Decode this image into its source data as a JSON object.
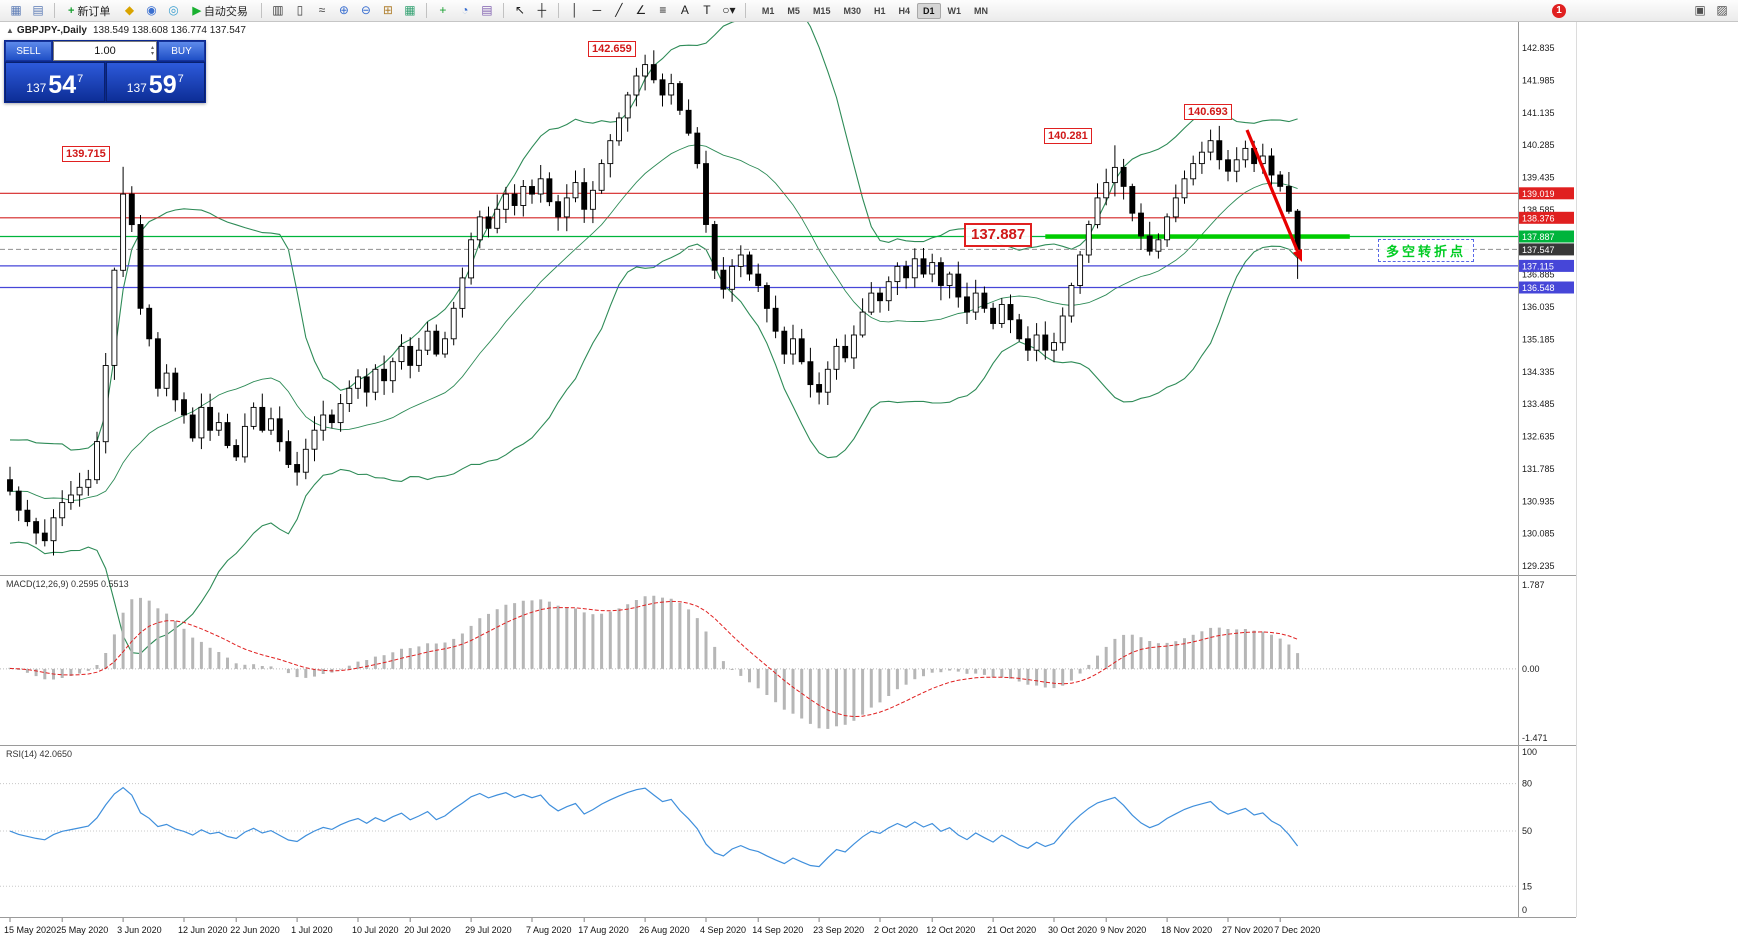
{
  "toolbar": {
    "new_order_label": "新订单",
    "autotrade_label": "自动交易",
    "timeframes": [
      "M1",
      "M5",
      "M15",
      "M30",
      "H1",
      "H4",
      "D1",
      "W1",
      "MN"
    ],
    "active_timeframe": "D1",
    "notification_count": "1",
    "items": [
      {
        "t": "icon",
        "name": "new-chart-icon",
        "g": "▦",
        "c": "#5a7ab5"
      },
      {
        "t": "icon",
        "name": "chart-profiles-icon",
        "g": "▤",
        "c": "#5a7ab5"
      },
      {
        "t": "sep"
      },
      {
        "t": "btn",
        "name": "new-order-button",
        "icon": "+",
        "ic": "#18a030",
        "label": "新订单"
      },
      {
        "t": "icon",
        "name": "mailbox-icon",
        "g": "◆",
        "c": "#d9a400"
      },
      {
        "t": "icon",
        "name": "market-watch-icon",
        "g": "◉",
        "c": "#3a6fd0"
      },
      {
        "t": "icon",
        "name": "community-icon",
        "g": "◎",
        "c": "#3a9fd0"
      },
      {
        "t": "btn",
        "name": "autotrade-button",
        "icon": "▶",
        "ic": "#18b030",
        "label": "自动交易"
      },
      {
        "t": "sep"
      },
      {
        "t": "icon",
        "name": "bar-chart-icon",
        "g": "▥",
        "c": "#404040"
      },
      {
        "t": "icon",
        "name": "candlestick-chart-icon",
        "g": "▯",
        "c": "#404040"
      },
      {
        "t": "icon",
        "name": "line-chart-icon",
        "g": "≈",
        "c": "#404040"
      },
      {
        "t": "icon",
        "name": "zoom-in-icon",
        "g": "⊕",
        "c": "#3a6fd0"
      },
      {
        "t": "icon",
        "name": "zoom-out-icon",
        "g": "⊖",
        "c": "#3a6fd0"
      },
      {
        "t": "icon",
        "name": "tile-windows-icon",
        "g": "⊞",
        "c": "#b08030"
      },
      {
        "t": "icon",
        "name": "auto-arrange-icon",
        "g": "▦",
        "c": "#30a070"
      },
      {
        "t": "sep"
      },
      {
        "t": "icon",
        "name": "indicators-icon",
        "g": "+",
        "c": "#18a030"
      },
      {
        "t": "icon",
        "name": "periods-icon",
        "g": "◔",
        "c": "#3a6fd0"
      },
      {
        "t": "icon",
        "name": "templates-icon",
        "g": "▤",
        "c": "#8060b0"
      },
      {
        "t": "sep"
      },
      {
        "t": "icon",
        "name": "cursor-icon",
        "g": "↖",
        "c": "#202020"
      },
      {
        "t": "icon",
        "name": "crosshair-icon",
        "g": "┼",
        "c": "#202020"
      },
      {
        "t": "sep"
      },
      {
        "t": "icon",
        "name": "vertical-line-icon",
        "g": "│",
        "c": "#202020"
      },
      {
        "t": "icon",
        "name": "horizontal-line-icon",
        "g": "─",
        "c": "#202020"
      },
      {
        "t": "icon",
        "name": "trendline-icon",
        "g": "╱",
        "c": "#202020"
      },
      {
        "t": "icon",
        "name": "channel-icon",
        "g": "∠",
        "c": "#202020"
      },
      {
        "t": "icon",
        "name": "fibonacci-icon",
        "g": "≡",
        "c": "#202020"
      },
      {
        "t": "icon",
        "name": "text-icon",
        "g": "A",
        "c": "#202020"
      },
      {
        "t": "icon",
        "name": "text-label-icon",
        "g": "T",
        "c": "#202020"
      },
      {
        "t": "icon",
        "name": "shapes-icon",
        "g": "○▾",
        "c": "#202020"
      },
      {
        "t": "sep"
      },
      {
        "t": "tfs"
      },
      {
        "t": "spacer"
      },
      {
        "t": "badge",
        "name": "notification-badge"
      },
      {
        "t": "gap"
      },
      {
        "t": "icon",
        "name": "dock-window-icon",
        "g": "▣",
        "c": "#505050"
      },
      {
        "t": "icon",
        "name": "panel-toggle-icon",
        "g": "▨",
        "c": "#505050"
      }
    ]
  },
  "chart": {
    "marker": "▲",
    "title": "GBPJPY-,Daily",
    "ohlc": "138.549 138.608 136.774 137.547"
  },
  "trade_panel": {
    "sell_label": "SELL",
    "buy_label": "BUY",
    "volume": "1.00",
    "sell_price_prefix": "137",
    "sell_price_big": "54",
    "sell_price_sup": "7",
    "buy_price_prefix": "137",
    "buy_price_big": "59",
    "buy_price_sup": "7"
  },
  "annotations": {
    "swing_jun": "139.715",
    "swing_aug": "142.659",
    "swing_nov1": "140.281",
    "swing_nov2": "140.693",
    "support_label": "137.887",
    "turning_point": "多空转折点"
  },
  "macd": {
    "label": "MACD(12,26,9) 0.2595 0.5513",
    "axis": [
      "1.787",
      "0.00",
      "-1.471"
    ]
  },
  "rsi": {
    "label": "RSI(14) 42.0650",
    "axis": [
      "100",
      "80",
      "50",
      "15",
      "0"
    ]
  },
  "chart_data": {
    "type": "candlestick",
    "symbol": "GBPJPY-",
    "timeframe": "Daily",
    "last_ohlc": {
      "open": 138.549,
      "high": 138.608,
      "low": 136.774,
      "close": 137.547
    },
    "first_open": 131.5,
    "closes": [
      131.2,
      130.7,
      130.4,
      130.1,
      129.9,
      130.5,
      130.9,
      131.1,
      131.3,
      131.5,
      132.5,
      134.5,
      137.0,
      139.0,
      138.2,
      136.0,
      135.2,
      133.9,
      134.3,
      133.6,
      133.2,
      132.6,
      133.4,
      132.8,
      133.0,
      132.4,
      132.1,
      132.9,
      133.4,
      132.8,
      133.1,
      132.5,
      131.9,
      131.7,
      132.3,
      132.8,
      133.2,
      133.0,
      133.5,
      133.9,
      134.2,
      133.8,
      134.4,
      134.1,
      134.6,
      135.0,
      134.5,
      134.9,
      135.4,
      134.8,
      135.2,
      136.0,
      136.8,
      137.8,
      138.4,
      138.1,
      138.6,
      139.0,
      138.7,
      139.2,
      139.0,
      139.4,
      138.8,
      138.4,
      138.9,
      139.3,
      138.6,
      139.1,
      139.8,
      140.4,
      141.0,
      141.6,
      142.1,
      142.4,
      142.0,
      141.6,
      141.9,
      141.2,
      140.6,
      139.8,
      138.2,
      137.0,
      136.5,
      137.1,
      137.4,
      136.9,
      136.6,
      136.0,
      135.4,
      134.8,
      135.2,
      134.6,
      134.0,
      133.8,
      134.4,
      135.0,
      134.7,
      135.3,
      135.9,
      136.4,
      136.2,
      136.7,
      137.1,
      136.8,
      137.3,
      136.9,
      137.2,
      136.6,
      136.9,
      136.3,
      135.9,
      136.4,
      136.0,
      135.6,
      136.1,
      135.7,
      135.2,
      134.9,
      135.3,
      134.9,
      135.1,
      135.8,
      136.6,
      137.4,
      138.2,
      138.9,
      139.3,
      139.7,
      139.2,
      138.5,
      137.9,
      137.5,
      137.8,
      138.4,
      138.9,
      139.4,
      139.8,
      140.1,
      140.4,
      139.9,
      139.6,
      139.9,
      140.2,
      139.8,
      140.0,
      139.5,
      139.2,
      138.55,
      137.547
    ],
    "overrides": {
      "4": {
        "l": 129.75
      },
      "13": {
        "h": 139.715
      },
      "73": {
        "h": 142.659
      },
      "127": {
        "h": 140.281
      },
      "138": {
        "h": 140.693
      },
      "148": {
        "o": 138.549,
        "h": 138.608,
        "l": 136.774,
        "c": 137.547
      }
    },
    "bollinger": {
      "period": 20,
      "deviation": 2,
      "color": "#2e8b57"
    },
    "y_axis": {
      "min": 129.235,
      "max": 142.835,
      "step": 0.85,
      "hidden_label": 137.735
    },
    "hlines": [
      {
        "price": 139.019,
        "color": "#d42424",
        "style": "solid",
        "width": 1.2,
        "label_bg": "#e02020"
      },
      {
        "price": 138.376,
        "color": "#d42424",
        "style": "solid",
        "width": 1.2,
        "label_bg": "#e02020"
      },
      {
        "price": 137.887,
        "color": "#00b43c",
        "style": "solid",
        "width": 1.2,
        "label_bg": "#00b43c"
      },
      {
        "price": 137.547,
        "color": "#909090",
        "style": "dash",
        "width": 1,
        "label_bg": "#383838"
      },
      {
        "price": 137.115,
        "color": "#4646d8",
        "style": "solid",
        "width": 1.2,
        "label_bg": "#4646d8"
      },
      {
        "price": 136.548,
        "color": "#4646d8",
        "style": "solid",
        "width": 1.2,
        "label_bg": "#4646d8"
      }
    ],
    "thick_support": {
      "price": 137.887,
      "start_index": 119,
      "end_index": 154,
      "color": "#00cc00"
    },
    "swing_labels": [
      {
        "text": "139.715",
        "index": 13,
        "price": 139.715
      },
      {
        "text": "142.659",
        "index": 73,
        "price": 142.659
      },
      {
        "text": "140.281",
        "index": 127,
        "price": 140.281
      },
      {
        "text": "140.693",
        "index": 138,
        "price": 140.693
      },
      {
        "text": "137.887",
        "price": 137.887
      }
    ],
    "macd": {
      "fast": 12,
      "slow": 26,
      "signal": 9,
      "main_value": 0.2595,
      "signal_value": 0.5513,
      "axis_max": 1.787,
      "axis_min": -1.471
    },
    "rsi": {
      "period": 14,
      "value": 42.065,
      "levels": [
        80,
        50,
        15
      ]
    },
    "x_ticks": {
      "indices": [
        0,
        6,
        13,
        20,
        26,
        33,
        40,
        46,
        53,
        60,
        66,
        73,
        80,
        86,
        93,
        100,
        106,
        113,
        120,
        126,
        133,
        140,
        146
      ],
      "labels": [
        "15 May 2020",
        "25 May 2020",
        "3 Jun 2020",
        "12 Jun 2020",
        "22 Jun 2020",
        "1 Jul 2020",
        "10 Jul 2020",
        "20 Jul 2020",
        "29 Jul 2020",
        "7 Aug 2020",
        "17 Aug 2020",
        "26 Aug 2020",
        "4 Sep 2020",
        "14 Sep 2020",
        "23 Sep 2020",
        "2 Oct 2020",
        "12 Oct 2020",
        "21 Oct 2020",
        "30 Oct 2020",
        "9 Nov 2020",
        "18 Nov 2020",
        "27 Nov 2020",
        "7 Dec 2020"
      ]
    }
  }
}
